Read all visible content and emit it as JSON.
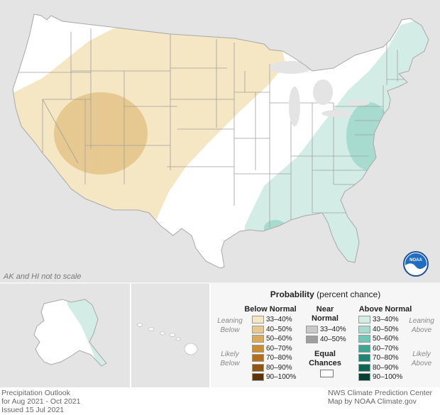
{
  "map": {
    "note": "AK and HI not to scale",
    "logo_text": "NOAA",
    "colors": {
      "land": "#ffffff",
      "water": "#e4e4e4",
      "below_33_40": "#f5e6c4",
      "below_40_50": "#e6c891",
      "above_33_40": "#d3ece6",
      "above_40_50": "#a7dbd0",
      "state_lines": "#9a9a9a"
    }
  },
  "legend": {
    "title_bold": "Probability",
    "title_rest": " (percent chance)",
    "below_header": "Below Normal",
    "near_header_1": "Near",
    "near_header_2": "Normal",
    "above_header": "Above Normal",
    "leaning_1": "Leaning",
    "below_word": "Below",
    "above_word": "Above",
    "likely_1": "Likely",
    "equal_1": "Equal",
    "equal_2": "Chances",
    "below_rows": [
      "33–40%",
      "40–50%",
      "50–60%",
      "60–70%",
      "70–80%",
      "80–90%",
      "90–100%"
    ],
    "near_rows": [
      "33–40%",
      "40–50%"
    ],
    "above_rows": [
      "33–40%",
      "40–50%",
      "50–60%",
      "60–70%",
      "70–80%",
      "80–90%",
      "90–100%"
    ],
    "below_colors": [
      "#f5e6c4",
      "#e6c891",
      "#d9ab5f",
      "#c98d35",
      "#b2701d",
      "#8f5513",
      "#5c340b"
    ],
    "near_colors": [
      "#c9c9c9",
      "#9f9f9f"
    ],
    "above_colors": [
      "#d3ece6",
      "#a7dbd0",
      "#72c6b6",
      "#3ea592",
      "#1f8472",
      "#116352",
      "#0a3d33"
    ]
  },
  "footer": {
    "left_1": "Precipitation Outlook",
    "left_2": "for Aug 2021 - Oct 2021",
    "left_3": "Issued 15 Jul 2021",
    "right_1": "NWS Climate Prediction Center",
    "right_2": "Map by NOAA Climate.gov"
  }
}
